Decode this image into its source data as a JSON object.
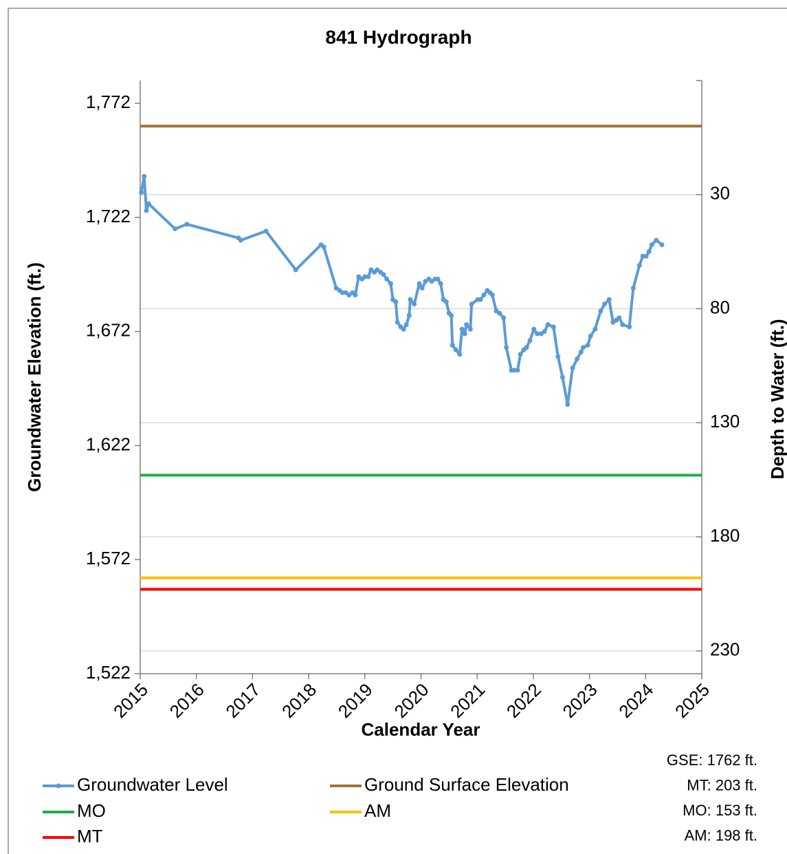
{
  "chart_data": {
    "type": "line",
    "title": "841 Hydrograph",
    "x_label": "Calendar Year",
    "y_label": "Groundwater Elevation (ft.)",
    "y2_label": "Depth to Water (ft.)",
    "xlim": [
      2015,
      2025
    ],
    "xticks": [
      2015,
      2016,
      2017,
      2018,
      2019,
      2020,
      2021,
      2022,
      2023,
      2024,
      2025
    ],
    "ylim": [
      1522,
      1782
    ],
    "yticks": [
      {
        "value": 1522,
        "label": "1,522"
      },
      {
        "value": 1572,
        "label": "1,572"
      },
      {
        "value": 1622,
        "label": "1,622"
      },
      {
        "value": 1672,
        "label": "1,672"
      },
      {
        "value": 1722,
        "label": "1,722"
      },
      {
        "value": 1772,
        "label": "1,772"
      }
    ],
    "y2lim": [
      -20,
      240
    ],
    "y2_inverted": true,
    "y2ticks": [
      30,
      80,
      130,
      180,
      230
    ],
    "grid": true,
    "legend": "bottom",
    "series": [
      {
        "name": "Groundwater Level",
        "color": "#5b9bd5",
        "markers": true,
        "x": [
          2015.02,
          2015.07,
          2015.11,
          2015.15,
          2015.62,
          2015.83,
          2016.75,
          2016.79,
          2017.24,
          2017.77,
          2018.22,
          2018.27,
          2018.49,
          2018.55,
          2018.6,
          2018.66,
          2018.72,
          2018.78,
          2018.83,
          2018.89,
          2018.95,
          2019.0,
          2019.06,
          2019.11,
          2019.17,
          2019.22,
          2019.28,
          2019.33,
          2019.39,
          2019.46,
          2019.5,
          2019.55,
          2019.58,
          2019.64,
          2019.69,
          2019.74,
          2019.79,
          2019.81,
          2019.88,
          2019.97,
          2020.02,
          2020.08,
          2020.14,
          2020.19,
          2020.25,
          2020.3,
          2020.35,
          2020.4,
          2020.45,
          2020.5,
          2020.54,
          2020.56,
          2020.62,
          2020.69,
          2020.73,
          2020.78,
          2020.81,
          2020.88,
          2020.9,
          2021.01,
          2021.06,
          2021.12,
          2021.18,
          2021.23,
          2021.27,
          2021.34,
          2021.4,
          2021.47,
          2021.52,
          2021.61,
          2021.66,
          2021.72,
          2021.77,
          2021.83,
          2021.88,
          2021.94,
          2022.01,
          2022.07,
          2022.14,
          2022.2,
          2022.26,
          2022.36,
          2022.44,
          2022.52,
          2022.61,
          2022.7,
          2022.78,
          2022.85,
          2022.89,
          2022.97,
          2023.02,
          2023.1,
          2023.2,
          2023.27,
          2023.35,
          2023.42,
          2023.48,
          2023.53,
          2023.59,
          2023.71,
          2023.78,
          2023.89,
          2023.95,
          2024.01,
          2024.06,
          2024.11,
          2024.19,
          2024.29
        ],
        "values": [
          1733,
          1740,
          1725,
          1728,
          1717,
          1719,
          1713,
          1712,
          1716,
          1699,
          1710,
          1709,
          1691,
          1690,
          1689,
          1689,
          1688,
          1689,
          1688,
          1696,
          1695,
          1696,
          1696,
          1699,
          1698,
          1699,
          1698,
          1697,
          1695,
          1693,
          1686,
          1685,
          1676,
          1674,
          1673,
          1675,
          1679,
          1686,
          1684,
          1693,
          1691,
          1694,
          1695,
          1694,
          1695,
          1695,
          1693,
          1686,
          1685,
          1680,
          1679,
          1666,
          1664,
          1662,
          1673,
          1671,
          1675,
          1673,
          1684,
          1686,
          1686,
          1688,
          1690,
          1689,
          1688,
          1681,
          1680,
          1678,
          1665,
          1655,
          1655,
          1655,
          1662,
          1664,
          1665,
          1668,
          1673,
          1671,
          1671,
          1672,
          1675,
          1674,
          1661,
          1652,
          1640,
          1656,
          1660,
          1663,
          1665,
          1666,
          1670,
          1673,
          1681,
          1684,
          1686,
          1676,
          1677,
          1678,
          1675,
          1674,
          1691,
          1701,
          1705,
          1705,
          1707,
          1710,
          1712,
          1710
        ]
      }
    ],
    "reference_lines": [
      {
        "name": "Ground Surface Elevation",
        "color": "#a5723a",
        "value": 1762,
        "axis": "y"
      },
      {
        "name": "MO",
        "color": "#1fad4b",
        "value": 153,
        "axis": "y2"
      },
      {
        "name": "AM",
        "color": "#ffc000",
        "value": 198,
        "axis": "y2"
      },
      {
        "name": "MT",
        "color": "#ff0000",
        "value": 203,
        "axis": "y2"
      }
    ],
    "annotations": [
      "GSE: 1762 ft.",
      "MT: 203 ft.",
      "MO: 153 ft.",
      "AM: 198 ft."
    ]
  }
}
